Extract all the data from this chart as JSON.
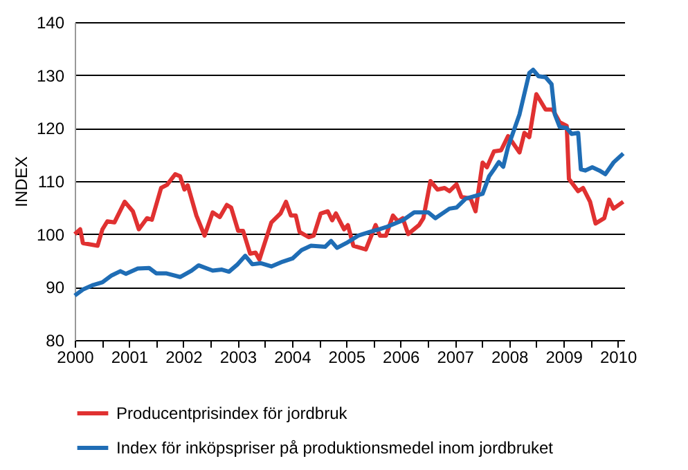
{
  "chart_data": {
    "type": "line",
    "ylabel": "INDEX",
    "xlim": [
      2000,
      2010.12
    ],
    "ylim": [
      80,
      140
    ],
    "yticks": [
      80,
      90,
      100,
      110,
      120,
      130,
      140
    ],
    "xticks": [
      2000,
      {
        "value": 2000.5,
        "label": null
      },
      2001,
      {
        "value": 2001.5,
        "label": null
      },
      2002,
      {
        "value": 2002.5,
        "label": null
      },
      2003,
      {
        "value": 2003.5,
        "label": null
      },
      2004,
      {
        "value": 2004.5,
        "label": null
      },
      2005,
      {
        "value": 2005.5,
        "label": null
      },
      2006,
      {
        "value": 2006.5,
        "label": null
      },
      2007,
      {
        "value": 2007.5,
        "label": null
      },
      2008,
      {
        "value": 2008.5,
        "label": null
      },
      2009,
      {
        "value": 2009.5,
        "label": null
      },
      2010
    ],
    "grid": "y",
    "legend": "bottom",
    "line_style": "solid",
    "marker": "none",
    "series": [
      {
        "name": "Producentprisindex för jordbruk",
        "color": "#e03131",
        "x": [
          2000.0,
          2000.1,
          2000.15,
          2000.42,
          2000.51,
          2000.6,
          2000.73,
          2000.92,
          2001.07,
          2001.18,
          2001.33,
          2001.42,
          2001.59,
          2001.7,
          2001.85,
          2001.94,
          2002.02,
          2002.08,
          2002.24,
          2002.39,
          2002.54,
          2002.67,
          2002.8,
          2002.88,
          2003.01,
          2003.1,
          2003.23,
          2003.33,
          2003.4,
          2003.62,
          2003.79,
          2003.89,
          2003.98,
          2004.07,
          2004.14,
          2004.31,
          2004.4,
          2004.53,
          2004.66,
          2004.74,
          2004.81,
          2004.96,
          2005.03,
          2005.13,
          2005.36,
          2005.54,
          2005.62,
          2005.73,
          2005.86,
          2005.95,
          2006.04,
          2006.14,
          2006.34,
          2006.42,
          2006.55,
          2006.68,
          2006.81,
          2006.9,
          2007.03,
          2007.12,
          2007.29,
          2007.38,
          2007.51,
          2007.59,
          2007.72,
          2007.85,
          2007.98,
          2008.19,
          2008.28,
          2008.37,
          2008.5,
          2008.67,
          2008.8,
          2008.93,
          2009.06,
          2009.1,
          2009.27,
          2009.36,
          2009.49,
          2009.59,
          2009.75,
          2009.84,
          2009.92,
          2010.1
        ],
        "values": [
          100.0,
          100.9,
          98.3,
          97.8,
          100.9,
          102.4,
          102.2,
          106.1,
          104.3,
          100.9,
          103.0,
          102.7,
          108.7,
          109.3,
          111.3,
          110.9,
          108.4,
          109.2,
          103.5,
          99.7,
          104.1,
          103.2,
          105.5,
          105.0,
          100.6,
          100.6,
          96.3,
          96.5,
          95.2,
          102.2,
          103.9,
          106.1,
          103.5,
          103.5,
          100.4,
          99.4,
          99.7,
          103.9,
          104.3,
          102.6,
          103.9,
          100.9,
          101.7,
          97.8,
          97.1,
          101.7,
          99.7,
          99.7,
          103.5,
          102.4,
          103.0,
          100.0,
          101.7,
          103.0,
          110.0,
          108.4,
          108.7,
          108.1,
          109.4,
          107.0,
          106.7,
          104.3,
          113.5,
          112.6,
          115.6,
          115.8,
          118.5,
          115.4,
          119.1,
          118.3,
          126.4,
          123.5,
          123.5,
          121.1,
          120.4,
          110.4,
          108.1,
          108.7,
          106.1,
          102.0,
          103.0,
          106.5,
          104.8,
          106.1
        ]
      },
      {
        "name": "Index för inköpspriser på produktionsmedel inom jordbruket",
        "color": "#1f6db5",
        "x": [
          2000.0,
          2000.16,
          2000.34,
          2000.51,
          2000.68,
          2000.84,
          2000.94,
          2001.16,
          2001.37,
          2001.5,
          2001.68,
          2001.94,
          2002.15,
          2002.28,
          2002.54,
          2002.71,
          2002.84,
          2003.0,
          2003.14,
          2003.27,
          2003.43,
          2003.62,
          2003.83,
          2004.01,
          2004.18,
          2004.35,
          2004.61,
          2004.72,
          2004.83,
          2005.0,
          2005.22,
          2005.43,
          2005.6,
          2005.73,
          2006.04,
          2006.25,
          2006.42,
          2006.51,
          2006.64,
          2006.9,
          2007.03,
          2007.2,
          2007.38,
          2007.51,
          2007.63,
          2007.72,
          2007.81,
          2007.89,
          2007.98,
          2008.19,
          2008.37,
          2008.44,
          2008.54,
          2008.67,
          2008.78,
          2008.84,
          2008.93,
          2009.06,
          2009.15,
          2009.27,
          2009.32,
          2009.4,
          2009.53,
          2009.66,
          2009.77,
          2009.92,
          2010.1
        ],
        "values": [
          88.4,
          89.6,
          90.4,
          90.9,
          92.2,
          93.0,
          92.5,
          93.5,
          93.6,
          92.6,
          92.6,
          91.9,
          93.1,
          94.1,
          93.1,
          93.3,
          92.9,
          94.3,
          95.9,
          94.3,
          94.5,
          93.9,
          94.8,
          95.4,
          97.0,
          97.8,
          97.6,
          98.7,
          97.4,
          98.3,
          99.7,
          100.4,
          100.9,
          101.3,
          102.6,
          104.1,
          104.1,
          104.1,
          103.0,
          104.8,
          105.0,
          106.7,
          107.2,
          107.6,
          110.9,
          112.2,
          113.6,
          112.7,
          116.5,
          122.6,
          130.4,
          131.0,
          129.8,
          129.6,
          128.3,
          122.6,
          120.2,
          120.0,
          118.9,
          119.1,
          112.2,
          112.0,
          112.6,
          112.0,
          111.3,
          113.5,
          115.2
        ]
      }
    ]
  }
}
